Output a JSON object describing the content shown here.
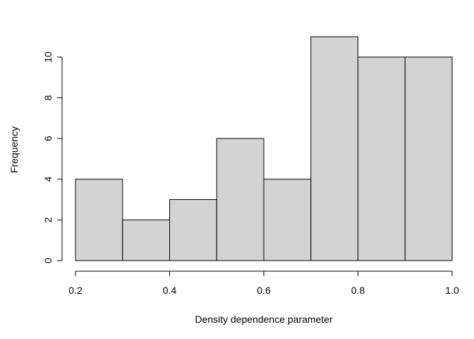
{
  "chart_data": {
    "type": "bar",
    "title": "",
    "xlabel": "Density dependence parameter",
    "ylabel": "Frequency",
    "bins": [
      {
        "from": 0.2,
        "to": 0.3,
        "count": 4
      },
      {
        "from": 0.3,
        "to": 0.4,
        "count": 2
      },
      {
        "from": 0.4,
        "to": 0.5,
        "count": 3
      },
      {
        "from": 0.5,
        "to": 0.6,
        "count": 6
      },
      {
        "from": 0.6,
        "to": 0.7,
        "count": 4
      },
      {
        "from": 0.7,
        "to": 0.8,
        "count": 11
      },
      {
        "from": 0.8,
        "to": 0.9,
        "count": 10
      },
      {
        "from": 0.9,
        "to": 1.0,
        "count": 10
      }
    ],
    "xticks": [
      "0.2",
      "0.4",
      "0.6",
      "0.8",
      "1.0"
    ],
    "yticks": [
      "0",
      "2",
      "4",
      "6",
      "8",
      "10"
    ],
    "xlim": [
      0.2,
      1.0
    ],
    "ylim": [
      0,
      11
    ],
    "grid": false,
    "bar_color": "#d3d3d3",
    "edge_color": "#000000"
  }
}
